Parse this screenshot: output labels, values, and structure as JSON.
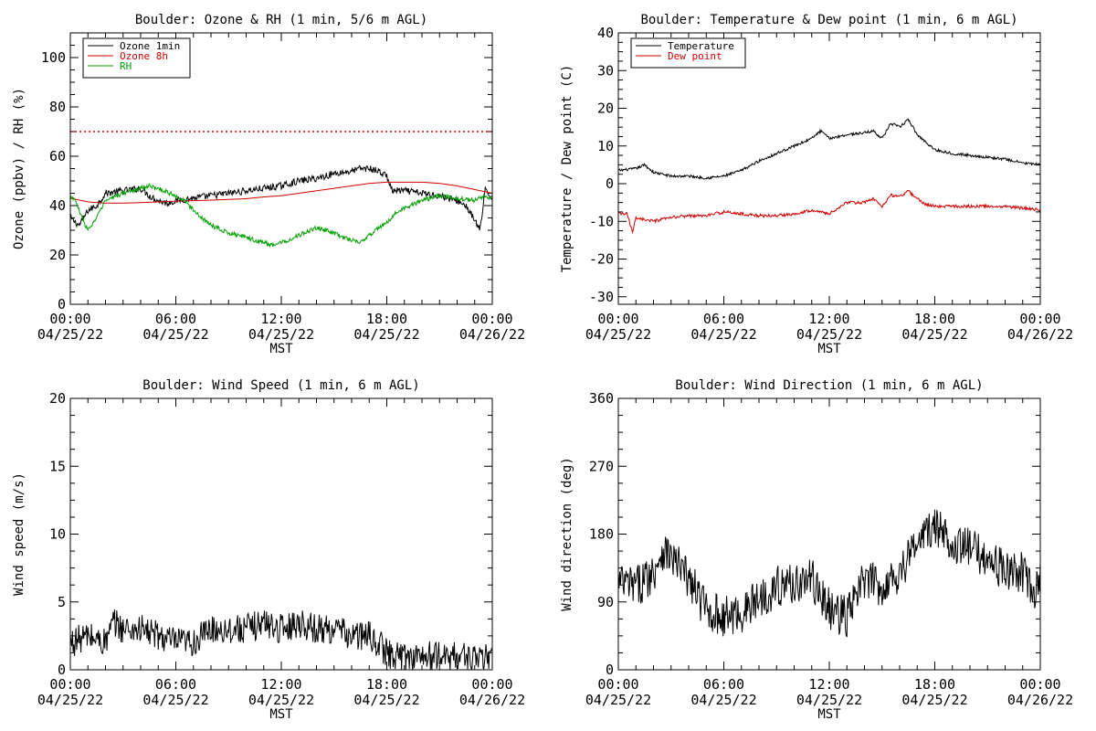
{
  "chart_data": [
    {
      "id": "ozone",
      "type": "line",
      "title": "Boulder: Ozone & RH (1 min, 5/6 m AGL)",
      "xlabel": "MST",
      "ylabel": "Ozone (ppbv) / RH (%)",
      "xlim": [
        0,
        24
      ],
      "ylim": [
        0,
        110
      ],
      "yticks": [
        0,
        20,
        40,
        60,
        80,
        100
      ],
      "xtick_labels": [
        {
          "time": "00:00",
          "date": "04/25/22"
        },
        {
          "time": "06:00",
          "date": "04/25/22"
        },
        {
          "time": "12:00",
          "date": "04/25/22"
        },
        {
          "time": "18:00",
          "date": "04/25/22"
        },
        {
          "time": "00:00",
          "date": "04/26/22"
        }
      ],
      "legend": {
        "placement": "top-left"
      },
      "reference_line": {
        "y": 70,
        "color": "#d00000",
        "style": "dotted"
      },
      "series": [
        {
          "name": "Ozone 1min",
          "color": "#000000",
          "noise": 1.4,
          "x": [
            0,
            0.5,
            1,
            1.5,
            2,
            3,
            4,
            4.5,
            5,
            5.5,
            6,
            7,
            8,
            9,
            10,
            11,
            12,
            13,
            14,
            15,
            16,
            16.5,
            17,
            17.5,
            18,
            18.3,
            19,
            20,
            21,
            22,
            22.5,
            23,
            23.3,
            23.6,
            24
          ],
          "y": [
            35,
            32,
            38,
            40,
            45,
            46,
            47,
            44,
            42,
            41,
            42,
            43,
            44,
            45,
            46,
            47,
            48,
            50,
            51,
            53,
            54,
            55,
            55,
            54,
            52,
            46,
            46,
            45,
            44,
            42,
            40,
            34,
            30,
            46,
            43
          ]
        },
        {
          "name": "Ozone 8h",
          "color": "#d00000",
          "noise": 0,
          "x": [
            0,
            1,
            2,
            3,
            4,
            5,
            6,
            7,
            8,
            9,
            10,
            11,
            12,
            13,
            14,
            15,
            16,
            17,
            18,
            19,
            20,
            21,
            22,
            23,
            24
          ],
          "y": [
            43,
            41.5,
            41,
            41,
            41.2,
            41.5,
            41.8,
            42,
            42.2,
            42.5,
            42.8,
            43.5,
            44,
            45,
            46,
            47,
            48,
            49,
            49.5,
            49.5,
            49.5,
            49,
            48,
            46.5,
            45
          ]
        },
        {
          "name": "RH",
          "color": "#00a000",
          "noise": 0.9,
          "x": [
            0,
            0.3,
            0.6,
            1,
            1.5,
            2,
            3,
            4,
            4.5,
            5,
            6,
            6.5,
            7,
            8,
            9,
            10,
            11,
            11.5,
            12,
            13,
            14,
            15,
            15.5,
            16,
            16.5,
            17,
            18,
            18.5,
            19,
            20,
            21,
            22,
            23,
            23.5,
            24
          ],
          "y": [
            44,
            42,
            36,
            30,
            35,
            42,
            45,
            47,
            48,
            47,
            44,
            42,
            38,
            32,
            29,
            27,
            25,
            24,
            25,
            28,
            31,
            29,
            27,
            26,
            25,
            28,
            33,
            37,
            39,
            42,
            44,
            43,
            42,
            44,
            43
          ]
        }
      ]
    },
    {
      "id": "temp",
      "type": "line",
      "title": "Boulder: Temperature & Dew point (1 min, 6 m AGL)",
      "xlabel": "MST",
      "ylabel": "Temperature / Dew point (C)",
      "xlim": [
        0,
        24
      ],
      "ylim": [
        -32,
        40
      ],
      "yticks": [
        -30,
        -20,
        -10,
        0,
        10,
        20,
        30,
        40
      ],
      "xtick_labels": [
        {
          "time": "00:00",
          "date": "04/25/22"
        },
        {
          "time": "06:00",
          "date": "04/25/22"
        },
        {
          "time": "12:00",
          "date": "04/25/22"
        },
        {
          "time": "18:00",
          "date": "04/25/22"
        },
        {
          "time": "00:00",
          "date": "04/26/22"
        }
      ],
      "legend": {
        "placement": "top-left"
      },
      "series": [
        {
          "name": "Temperature",
          "color": "#000000",
          "noise": 0.35,
          "x": [
            0,
            1,
            1.5,
            2,
            3,
            4,
            5,
            6,
            7,
            8,
            9,
            10,
            11,
            11.5,
            12,
            13,
            14,
            14.5,
            15,
            15.5,
            16,
            16.5,
            17,
            17.5,
            18,
            19,
            20,
            21,
            22,
            23,
            24
          ],
          "y": [
            3.5,
            4,
            5,
            3,
            2,
            2,
            1.5,
            2,
            3.5,
            6,
            8,
            10,
            12,
            14,
            12,
            13,
            13.5,
            14,
            12,
            16,
            15,
            17,
            13,
            11,
            9,
            8,
            7.5,
            7,
            6.5,
            5.5,
            5
          ]
        },
        {
          "name": "Dew point",
          "color": "#d00000",
          "noise": 0.4,
          "x": [
            0,
            0.5,
            0.8,
            1,
            2,
            3,
            4,
            5,
            6,
            7,
            8,
            9,
            10,
            11,
            12,
            13,
            14,
            14.5,
            15,
            15.5,
            16,
            16.5,
            17,
            17.5,
            18,
            19,
            20,
            21,
            22,
            23,
            24
          ],
          "y": [
            -8,
            -8,
            -13,
            -9,
            -10,
            -9,
            -8.5,
            -8.5,
            -7.5,
            -8,
            -8.5,
            -8.5,
            -8,
            -7,
            -8,
            -5,
            -5,
            -4,
            -6,
            -3,
            -3.5,
            -2,
            -4,
            -5.5,
            -6,
            -6,
            -6,
            -6,
            -6,
            -6.5,
            -7
          ]
        }
      ]
    },
    {
      "id": "wspd",
      "type": "line",
      "title": "Boulder: Wind Speed (1 min, 6 m AGL)",
      "xlabel": "MST",
      "ylabel": "Wind speed (m/s)",
      "xlim": [
        0,
        24
      ],
      "ylim": [
        0,
        20
      ],
      "yticks": [
        0,
        5,
        10,
        15,
        20
      ],
      "xtick_labels": [
        {
          "time": "00:00",
          "date": "04/25/22"
        },
        {
          "time": "06:00",
          "date": "04/25/22"
        },
        {
          "time": "12:00",
          "date": "04/25/22"
        },
        {
          "time": "18:00",
          "date": "04/25/22"
        },
        {
          "time": "00:00",
          "date": "04/26/22"
        }
      ],
      "series": [
        {
          "name": "Wind speed",
          "color": "#000000",
          "noise": 1.1,
          "x": [
            0,
            1,
            2,
            2.5,
            3,
            4,
            5,
            6,
            7,
            8,
            9,
            10,
            11,
            12,
            13,
            14,
            15,
            16,
            17,
            17.5,
            18,
            19,
            20,
            21,
            22,
            23,
            23.5,
            24
          ],
          "y": [
            2,
            2.5,
            2,
            3.5,
            3,
            3,
            2.5,
            2,
            2,
            3,
            3,
            3,
            3.5,
            3,
            3.5,
            3,
            3,
            2.5,
            2.5,
            2,
            1.2,
            1,
            1,
            1,
            1,
            1,
            0.5,
            1.5
          ]
        }
      ]
    },
    {
      "id": "wdir",
      "type": "line",
      "title": "Boulder: Wind Direction (1 min, 6 m AGL)",
      "xlabel": "MST",
      "ylabel": "Wind direction (deg)",
      "xlim": [
        0,
        24
      ],
      "ylim": [
        0,
        360
      ],
      "yticks": [
        0,
        90,
        180,
        270,
        360
      ],
      "xtick_labels": [
        {
          "time": "00:00",
          "date": "04/25/22"
        },
        {
          "time": "06:00",
          "date": "04/25/22"
        },
        {
          "time": "12:00",
          "date": "04/25/22"
        },
        {
          "time": "18:00",
          "date": "04/25/22"
        },
        {
          "time": "00:00",
          "date": "04/26/22"
        }
      ],
      "series": [
        {
          "name": "Wind direction",
          "color": "#000000",
          "noise": 28,
          "x": [
            0,
            1,
            2,
            2.5,
            3,
            4,
            5,
            6,
            7,
            8,
            9,
            10,
            11,
            12,
            13,
            14,
            15,
            16,
            17,
            18,
            19,
            20,
            21,
            22,
            23,
            23.5,
            24
          ],
          "y": [
            115,
            110,
            130,
            160,
            150,
            120,
            80,
            70,
            75,
            95,
            110,
            115,
            120,
            80,
            70,
            120,
            110,
            130,
            170,
            190,
            170,
            160,
            150,
            130,
            130,
            100,
            120
          ]
        }
      ]
    }
  ]
}
